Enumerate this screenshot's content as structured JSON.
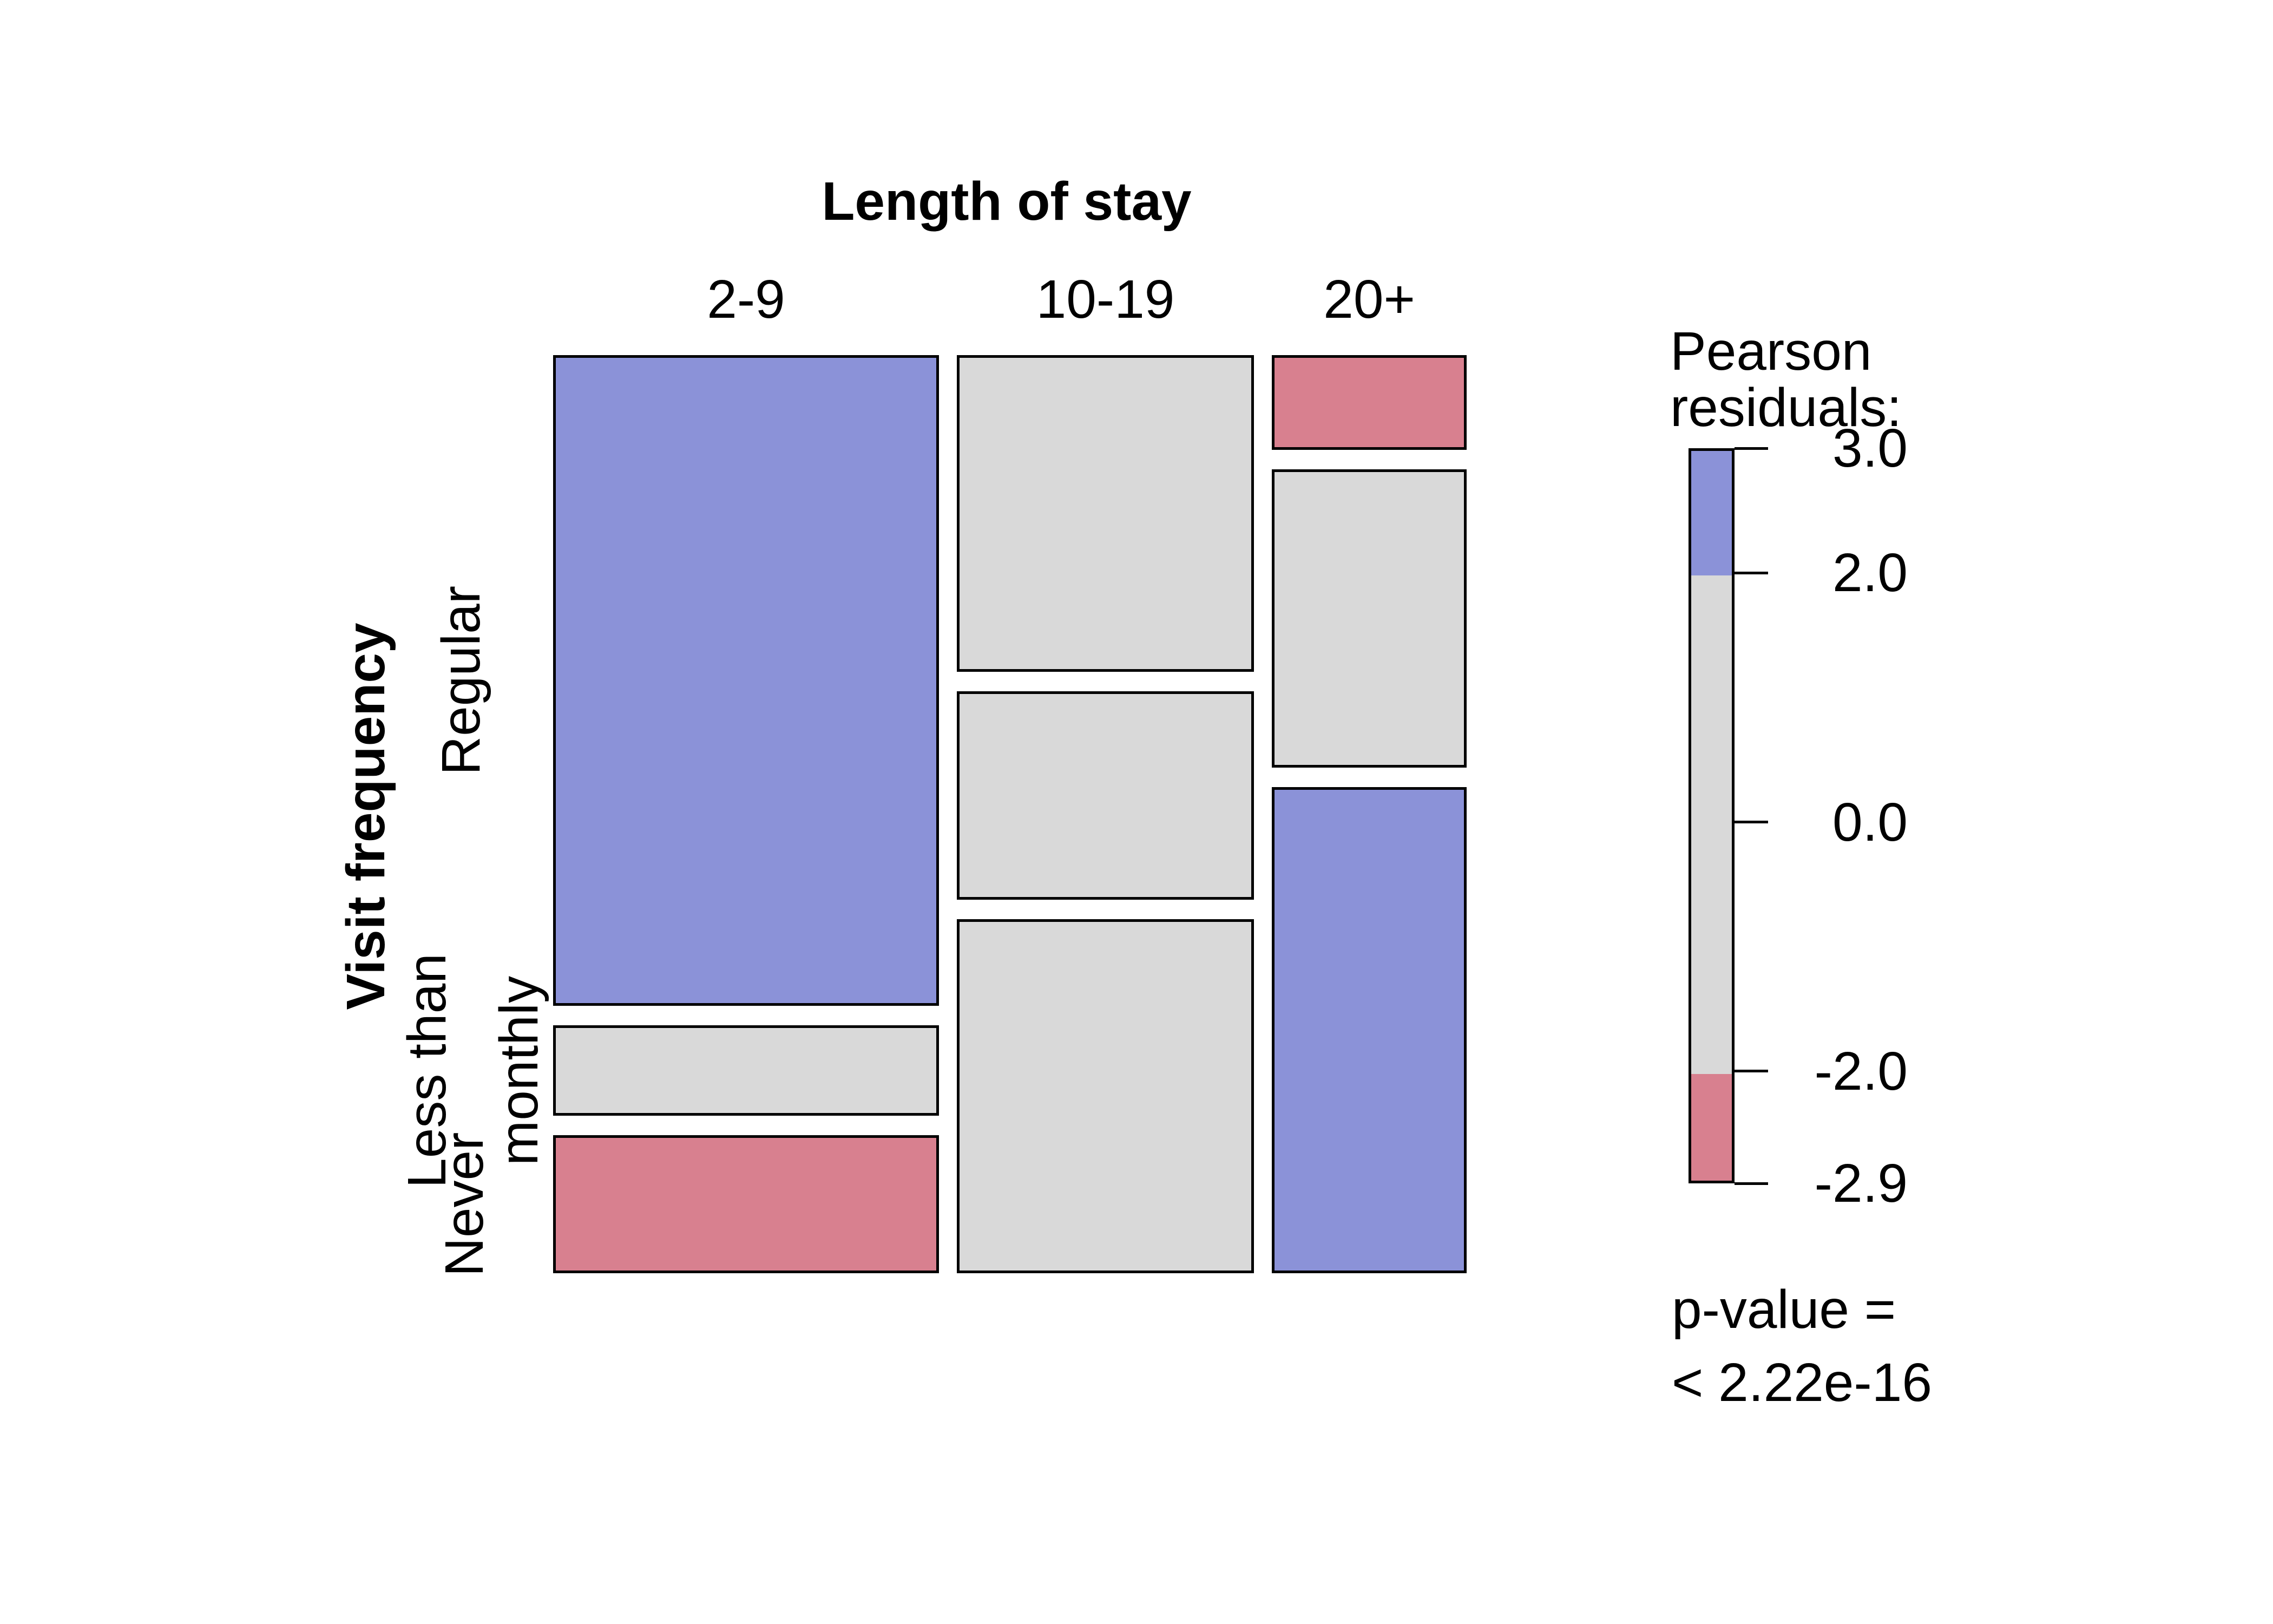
{
  "chart_data": {
    "type": "mosaic",
    "title": "Length of stay",
    "x_axis": {
      "label": "Length of stay",
      "categories": [
        "2-9",
        "10-19",
        "20+"
      ],
      "shares": [
        0.4396,
        0.3385,
        0.2219
      ]
    },
    "y_axis": {
      "label": "Visit frequency",
      "categories": [
        "Regular",
        "Less than monthly",
        "Never"
      ],
      "category_display_lines": [
        [
          "Regular"
        ],
        [
          "Less than",
          "monthly"
        ],
        [
          "Never"
        ]
      ]
    },
    "cells": [
      {
        "col": "2-9",
        "row": "Regular",
        "share": 0.7403,
        "shading": "positive"
      },
      {
        "col": "2-9",
        "row": "Less than monthly",
        "share": 0.1029,
        "shading": "neutral"
      },
      {
        "col": "2-9",
        "row": "Never",
        "share": 0.1568,
        "shading": "negative"
      },
      {
        "col": "10-19",
        "row": "Regular",
        "share": 0.3603,
        "shading": "neutral"
      },
      {
        "col": "10-19",
        "row": "Less than monthly",
        "share": 0.2372,
        "shading": "neutral"
      },
      {
        "col": "10-19",
        "row": "Never",
        "share": 0.4025,
        "shading": "neutral"
      },
      {
        "col": "20+",
        "row": "Regular",
        "share": 0.1078,
        "shading": "negative"
      },
      {
        "col": "20+",
        "row": "Less than monthly",
        "share": 0.3393,
        "shading": "neutral"
      },
      {
        "col": "20+",
        "row": "Never",
        "share": 0.5529,
        "shading": "positive"
      }
    ],
    "colors": {
      "positive": "#8b92d8",
      "neutral": "#d9d9d9",
      "negative": "#d8808f",
      "border": "#000000",
      "background": "#ffffff"
    },
    "legend": {
      "title_lines": [
        "Pearson",
        "residuals:"
      ],
      "max": 3.0,
      "min": -2.9,
      "ticks": [
        {
          "value": 3.0,
          "label": "3.0"
        },
        {
          "value": 2.0,
          "label": "2.0"
        },
        {
          "value": 0.0,
          "label": "0.0"
        },
        {
          "value": -2.0,
          "label": "-2.0"
        },
        {
          "value": -2.9,
          "label": "-2.9"
        }
      ],
      "segments": [
        {
          "from": 2.0,
          "to": 3.0,
          "shading": "positive"
        },
        {
          "from": -2.0,
          "to": 2.0,
          "shading": "neutral"
        },
        {
          "from": -2.9,
          "to": -2.0,
          "shading": "negative"
        }
      ],
      "p_value_lines": [
        "p-value =",
        "< 2.22e-16"
      ]
    }
  }
}
